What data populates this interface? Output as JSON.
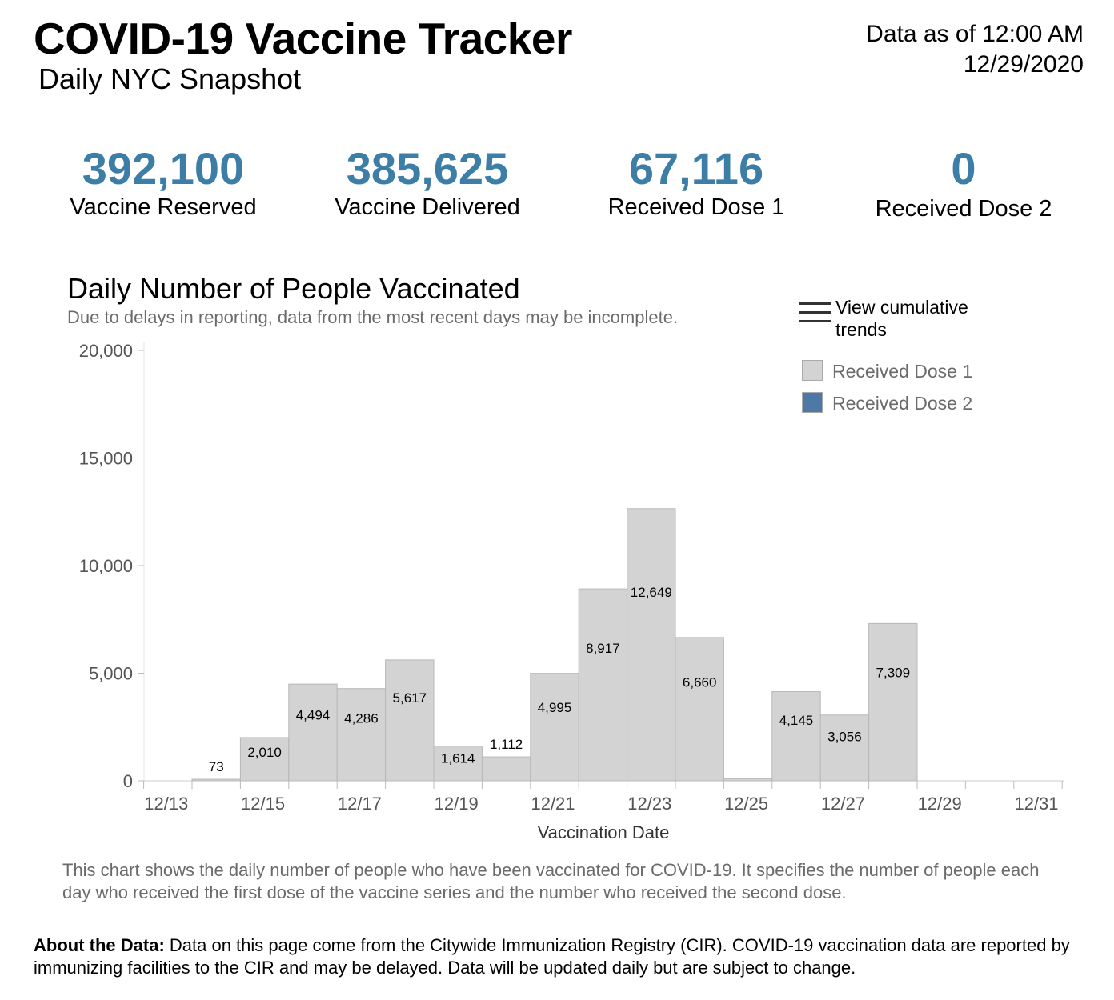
{
  "header": {
    "title": "COVID-19 Vaccine Tracker",
    "subtitle": "Daily NYC Snapshot",
    "as_of_line1": "Data as of 12:00 AM",
    "as_of_line2": "12/29/2020"
  },
  "kpis": [
    {
      "value": "392,100",
      "label": "Vaccine Reserved"
    },
    {
      "value": "385,625",
      "label": "Vaccine Delivered"
    },
    {
      "value": "67,116",
      "label": "Received Dose 1"
    },
    {
      "value": "0",
      "label": "Received Dose 2"
    }
  ],
  "chart_header": {
    "title": "Daily Number of People Vaccinated",
    "subtitle": "Due to delays in reporting, data from the most recent days may be incomplete.",
    "cumulative_label_1": "View cumulative",
    "cumulative_label_2": "trends"
  },
  "legend": {
    "dose1": {
      "label": "Received Dose 1",
      "color": "#d3d3d3"
    },
    "dose2": {
      "label": "Received Dose 2",
      "color": "#4e79a7"
    }
  },
  "chart_data": {
    "type": "bar",
    "title": "Daily Number of People Vaccinated",
    "xlabel": "Vaccination Date",
    "ylabel": "",
    "ylim": [
      0,
      20000
    ],
    "y_ticks": [
      0,
      5000,
      10000,
      15000,
      20000
    ],
    "y_tick_labels": [
      "0",
      "5,000",
      "10,000",
      "15,000",
      "20,000"
    ],
    "x_tick_labels": [
      "12/13",
      "12/15",
      "12/17",
      "12/19",
      "12/21",
      "12/23",
      "12/25",
      "12/27",
      "12/29",
      "12/31"
    ],
    "categories": [
      "12/14",
      "12/15",
      "12/16",
      "12/17",
      "12/18",
      "12/19",
      "12/20",
      "12/21",
      "12/22",
      "12/23",
      "12/24",
      "12/25",
      "12/26",
      "12/27",
      "12/28"
    ],
    "series": [
      {
        "name": "Received Dose 1",
        "color": "#d3d3d3",
        "values": [
          73,
          2010,
          4494,
          4286,
          5617,
          1614,
          1112,
          4995,
          8917,
          12649,
          6660,
          100,
          4145,
          3056,
          7309
        ],
        "labels": [
          "73",
          "2,010",
          "4,494",
          "4,286",
          "5,617",
          "1,614",
          "1,112",
          "4,995",
          "8,917",
          "12,649",
          "6,660",
          "",
          "4,145",
          "3,056",
          "7,309"
        ]
      },
      {
        "name": "Received Dose 2",
        "color": "#4e79a7",
        "values": [
          0,
          0,
          0,
          0,
          0,
          0,
          0,
          0,
          0,
          0,
          0,
          0,
          0,
          0,
          0
        ]
      }
    ]
  },
  "description": "This chart shows the daily number of people who have been vaccinated for COVID-19. It specifies the number of people each day who received the first dose of the vaccine series and the number who received the second dose.",
  "about": {
    "heading": "About the Data:",
    "text": " Data on this page come from the Citywide Immunization Registry (CIR). COVID-19 vaccination data are reported by immunizing facilities to the CIR and may be delayed. Data will be updated daily but are subject to change."
  }
}
